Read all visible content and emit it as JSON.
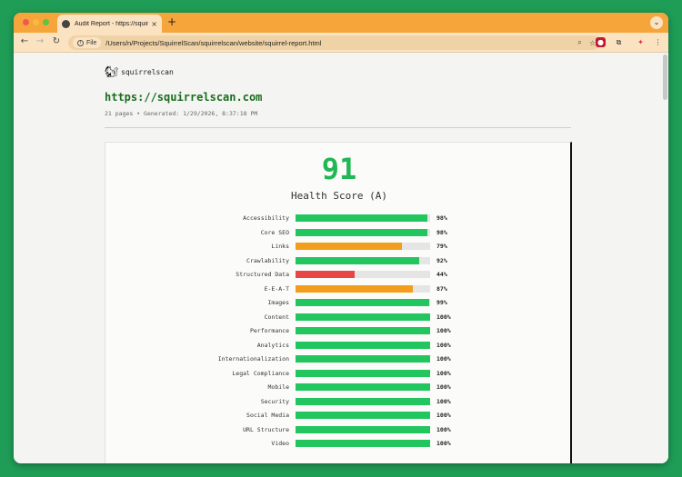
{
  "browser": {
    "tab_title": "Audit Report - https://squirrel",
    "tab_close": "×",
    "new_tab": "+",
    "tab_menu": "⌄",
    "nav_back": "←",
    "nav_forward": "→",
    "nav_reload": "↻",
    "chip_label": "File",
    "url": "/Users/n/Projects/SquirrelScan/squirrelscan/website/squirrel-report.html",
    "zoom_icon": "⌕",
    "star_icon": "☆",
    "menu_icon": "⋮"
  },
  "header": {
    "brand": "squirrelscan",
    "site_url": "https://squirrelscan.com",
    "meta": "21 pages • Generated: 1/29/2026, 8:37:18 PM"
  },
  "score": {
    "value": "91",
    "label": "Health Score (A)"
  },
  "colors": {
    "good": "#22c55e",
    "warn": "#f29d1c",
    "bad": "#e84545"
  },
  "categories": [
    {
      "name": "Accessibility",
      "value": "98%",
      "percent": 98,
      "status": "good"
    },
    {
      "name": "Core SEO",
      "value": "98%",
      "percent": 98,
      "status": "good"
    },
    {
      "name": "Links",
      "value": "79%",
      "percent": 79,
      "status": "warn"
    },
    {
      "name": "Crawlability",
      "value": "92%",
      "percent": 92,
      "status": "good"
    },
    {
      "name": "Structured Data",
      "value": "44%",
      "percent": 44,
      "status": "bad"
    },
    {
      "name": "E-E-A-T",
      "value": "87%",
      "percent": 87,
      "status": "warn"
    },
    {
      "name": "Images",
      "value": "99%",
      "percent": 99,
      "status": "good"
    },
    {
      "name": "Content",
      "value": "100%",
      "percent": 100,
      "status": "good"
    },
    {
      "name": "Performance",
      "value": "100%",
      "percent": 100,
      "status": "good"
    },
    {
      "name": "Analytics",
      "value": "100%",
      "percent": 100,
      "status": "good"
    },
    {
      "name": "Internationalization",
      "value": "100%",
      "percent": 100,
      "status": "good"
    },
    {
      "name": "Legal Compliance",
      "value": "100%",
      "percent": 100,
      "status": "good"
    },
    {
      "name": "Mobile",
      "value": "100%",
      "percent": 100,
      "status": "good"
    },
    {
      "name": "Security",
      "value": "100%",
      "percent": 100,
      "status": "good"
    },
    {
      "name": "Social Media",
      "value": "100%",
      "percent": 100,
      "status": "good"
    },
    {
      "name": "URL Structure",
      "value": "100%",
      "percent": 100,
      "status": "good"
    },
    {
      "name": "Video",
      "value": "100%",
      "percent": 100,
      "status": "good"
    }
  ]
}
